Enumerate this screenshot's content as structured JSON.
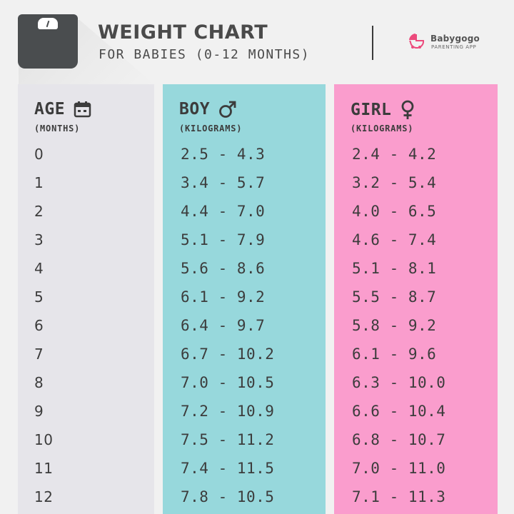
{
  "header": {
    "title": "WEIGHT CHART",
    "subtitle": "FOR BABIES (0-12 MONTHS)",
    "logo_icon": "baby-stroller-icon",
    "logo_name": "Babygogo",
    "logo_tagline": "PARENTING APP",
    "scale_icon": "weighing-scale-icon"
  },
  "colors": {
    "background": "#f1f1f1",
    "age_column": "#e6e5ea",
    "boy_column": "#97d8dc",
    "girl_column": "#fa9dcd",
    "text": "#3c3c3c",
    "logo_accent": "#ec4a7c"
  },
  "columns": {
    "age": {
      "label": "AGE",
      "unit": "(MONTHS)",
      "icon": "calendar-icon"
    },
    "boy": {
      "label": "BOY",
      "unit": "(KILOGRAMS)",
      "icon": "male-symbol-icon"
    },
    "girl": {
      "label": "GIRL",
      "unit": "(KILOGRAMS)",
      "icon": "female-symbol-icon"
    }
  },
  "rows": [
    {
      "age": "0",
      "boy": "2.5 - 4.3",
      "girl": "2.4 - 4.2"
    },
    {
      "age": "1",
      "boy": "3.4 - 5.7",
      "girl": "3.2 - 5.4"
    },
    {
      "age": "2",
      "boy": "4.4 - 7.0",
      "girl": "4.0 - 6.5"
    },
    {
      "age": "3",
      "boy": "5.1 - 7.9",
      "girl": "4.6 - 7.4"
    },
    {
      "age": "4",
      "boy": "5.6 - 8.6",
      "girl": "5.1 - 8.1"
    },
    {
      "age": "5",
      "boy": "6.1 - 9.2",
      "girl": "5.5 - 8.7"
    },
    {
      "age": "6",
      "boy": "6.4 - 9.7",
      "girl": "5.8 - 9.2"
    },
    {
      "age": "7",
      "boy": "6.7 - 10.2",
      "girl": "6.1 - 9.6"
    },
    {
      "age": "8",
      "boy": "7.0 - 10.5",
      "girl": "6.3 - 10.0"
    },
    {
      "age": "9",
      "boy": "7.2 - 10.9",
      "girl": "6.6 - 10.4"
    },
    {
      "age": "10",
      "boy": "7.5 - 11.2",
      "girl": "6.8 - 10.7"
    },
    {
      "age": "11",
      "boy": "7.4 - 11.5",
      "girl": "7.0 - 11.0"
    },
    {
      "age": "12",
      "boy": "7.8 - 10.5",
      "girl": "7.1 - 11.3"
    }
  ]
}
